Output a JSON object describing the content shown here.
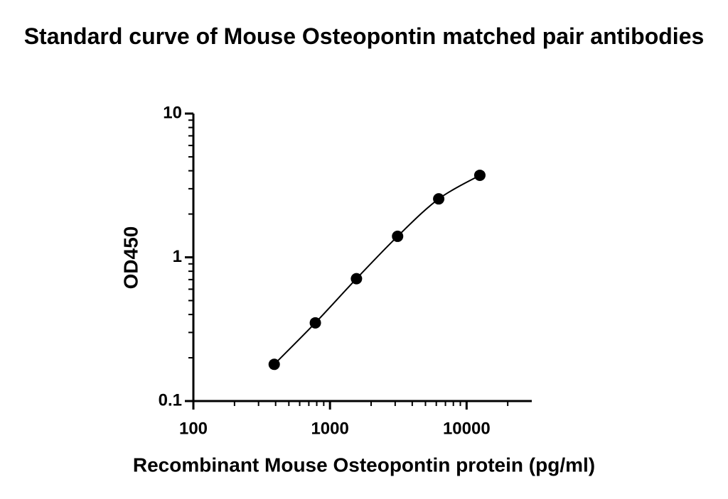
{
  "chart_data": {
    "type": "scatter",
    "title": "Standard curve of Mouse Osteopontin matched pair antibodies",
    "xlabel": "Recombinant Mouse Osteopontin protein (pg/ml)",
    "ylabel": "OD450",
    "log_x": true,
    "log_y": true,
    "xlim": [
      100,
      30000
    ],
    "ylim": [
      0.1,
      10
    ],
    "xticks": [
      100,
      1000,
      10000
    ],
    "yticks": [
      {
        "value": 0.1,
        "label": "0.1"
      },
      1,
      10
    ],
    "xminorticks": [
      200,
      300,
      400,
      500,
      600,
      700,
      800,
      900,
      2000,
      3000,
      4000,
      5000,
      6000,
      7000,
      8000,
      9000,
      20000
    ],
    "yminorticks": [
      0.2,
      0.3,
      0.4,
      0.5,
      0.6,
      0.7,
      0.8,
      0.9,
      2,
      3,
      4,
      5,
      6,
      7,
      8,
      9
    ],
    "color": "#000000",
    "fit_curve": true,
    "x": [
      390.625,
      781.25,
      1562.5,
      3125,
      6250,
      12500
    ],
    "values": [
      0.18,
      0.35,
      0.71,
      1.4,
      2.55,
      3.72
    ]
  }
}
